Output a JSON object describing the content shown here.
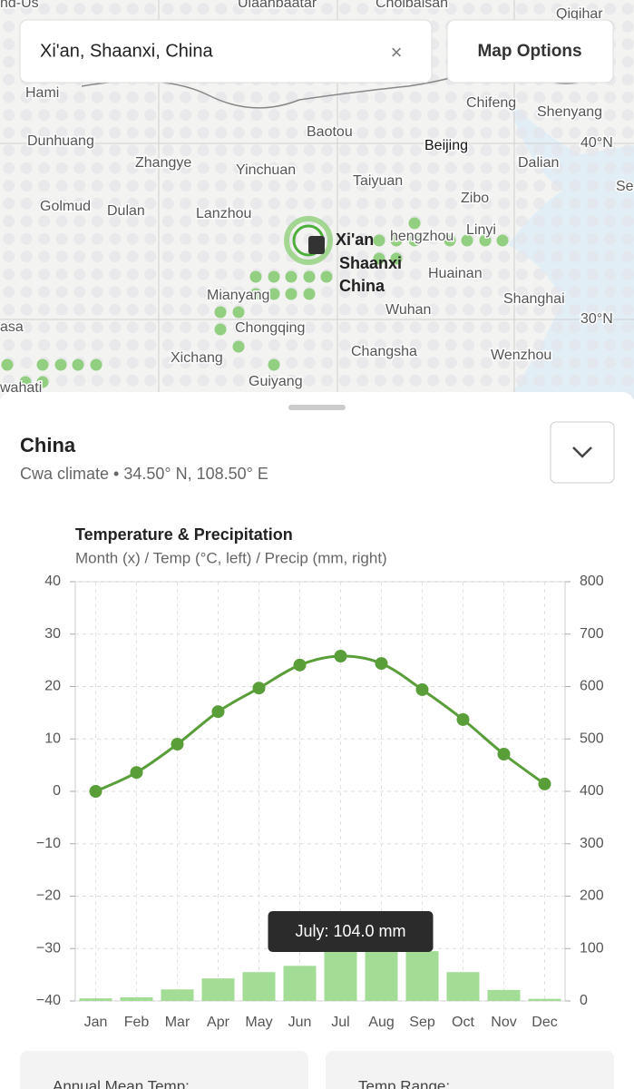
{
  "search": {
    "text": "Xi'an, Shaanxi, China",
    "clear": "×"
  },
  "map_options": "Map Options",
  "map_labels": [
    "nd-Us",
    "Ulaanbaatar",
    "Choibalsan",
    "Qiqihar",
    "Hami",
    "Chifeng",
    "Shenyang",
    "Dunhuang",
    "Baotou",
    "Beijing",
    "40°N",
    "Zhangye",
    "Yinchuan",
    "Dalian",
    "Taiyuan",
    "Golmud",
    "Dulan",
    "Lanzhou",
    "Zibo",
    "Linyi",
    "hengzhou",
    "Huainan",
    "Mianyang",
    "Shanghai",
    "Wuhan",
    "30°N",
    "Chongqing",
    "Xichang",
    "Changsha",
    "Wenzhou",
    "Guiyang",
    "asa",
    "wahati",
    "Se"
  ],
  "marker": {
    "lines": [
      "Xi'an",
      "Shaanxi",
      "China"
    ]
  },
  "panel": {
    "title": "China",
    "subtitle": "Cwa climate • 34.50° N, 108.50° E"
  },
  "chart_data": {
    "type": "combo",
    "title": "Temperature & Precipitation",
    "subtitle": "Month (x) / Temp (°C, left) / Precip (mm, right)",
    "categories": [
      "Jan",
      "Feb",
      "Mar",
      "Apr",
      "May",
      "Jun",
      "Jul",
      "Aug",
      "Sep",
      "Oct",
      "Nov",
      "Dec"
    ],
    "series": [
      {
        "type": "bar",
        "axis": "y2",
        "color": "#a3dc95",
        "values": [
          5,
          7,
          22,
          43,
          55,
          67,
          104,
          100,
          95,
          55,
          21,
          4
        ]
      },
      {
        "type": "line",
        "color": "#5a9e3a",
        "values": [
          0.0,
          3.6,
          9.0,
          15.2,
          19.7,
          24.1,
          25.8,
          24.4,
          19.4,
          13.7,
          7.1,
          1.4
        ]
      }
    ],
    "ylim": [
      -40,
      40
    ],
    "yticks": [
      {
        "value": -40,
        "label": "−40"
      },
      {
        "value": -30,
        "label": "−30"
      },
      {
        "value": -20,
        "label": "−20"
      },
      {
        "value": -10,
        "label": "−10"
      },
      0,
      10,
      20,
      30,
      40
    ],
    "y2lim": [
      0,
      800
    ],
    "y2ticks": [
      0,
      100,
      200,
      300,
      400,
      500,
      600,
      700,
      800
    ],
    "grid": true,
    "tooltip": "July: 104.0 mm"
  },
  "stats": [
    "Annual Mean Temp:",
    "Temp Range:"
  ]
}
